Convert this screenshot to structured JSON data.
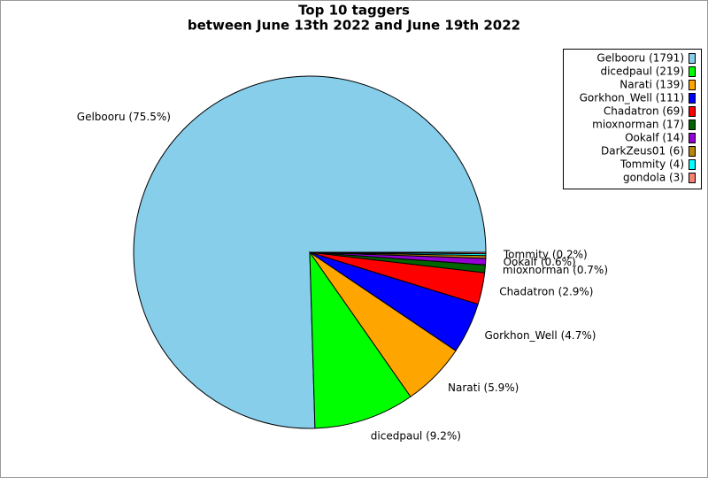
{
  "chart_data": {
    "type": "pie",
    "title": "Top 10 taggers",
    "subtitle": "between June 13th 2022 and June 19th 2022",
    "categories": [
      "Gelbooru",
      "dicedpaul",
      "Narati",
      "Gorkhon_Well",
      "Chadatron",
      "mioxnorman",
      "Ookalf",
      "DarkZeus01",
      "Tommity",
      "gondola"
    ],
    "values": [
      1791,
      219,
      139,
      111,
      69,
      17,
      14,
      6,
      4,
      3
    ],
    "legend_labels": [
      "Gelbooru (1791)",
      "dicedpaul (219)",
      "Narati (139)",
      "Gorkhon_Well (111)",
      "Chadatron (69)",
      "mioxnorman (17)",
      "Ookalf (14)",
      "DarkZeus01 (6)",
      "Tommity (4)",
      "gondola (3)"
    ],
    "slice_labels": [
      "Gelbooru (75.5%)",
      "dicedpaul (9.2%)",
      "Narati (5.9%)",
      "Gorkhon_Well (4.7%)",
      "Chadatron (2.9%)",
      "mioxnorman (0.7%)",
      "Ookalf (0.6%)",
      null,
      "Tommity (0.2%)",
      null
    ],
    "colors": [
      "#87ceeb",
      "#00ff00",
      "#ffa500",
      "#0000ff",
      "#ff0000",
      "#006400",
      "#9400d3",
      "#b8860b",
      "#00ffff",
      "#fa8072"
    ],
    "legend": "upper right"
  }
}
